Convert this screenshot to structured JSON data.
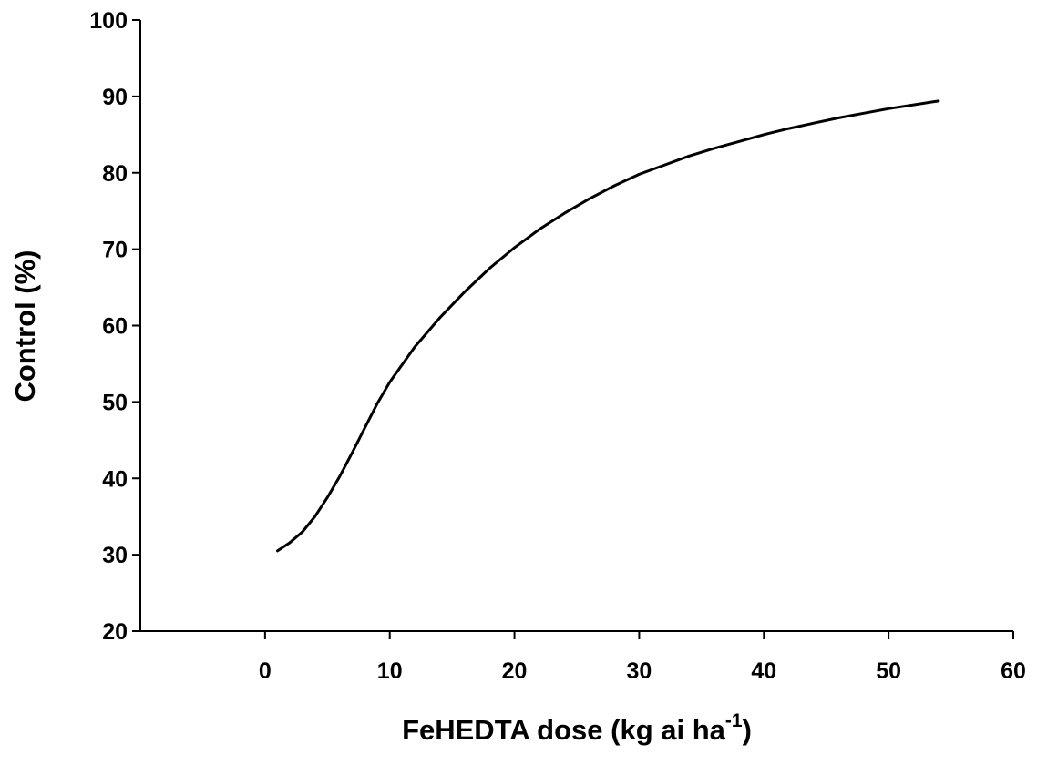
{
  "chart_data": {
    "type": "line",
    "title": "",
    "xlabel_main": "FeHEDTA dose (kg ai ha",
    "xlabel_sup": "-1",
    "xlabel_close": ")",
    "ylabel": "Control (%)",
    "xlim": [
      -10,
      60
    ],
    "ylim": [
      20,
      100
    ],
    "x_ticks": [
      0,
      10,
      20,
      30,
      40,
      50,
      60
    ],
    "y_ticks": [
      20,
      30,
      40,
      50,
      60,
      70,
      80,
      90,
      100
    ],
    "grid": false,
    "legend": "none",
    "series": [
      {
        "color": "#000000",
        "x": [
          1,
          2,
          3,
          4,
          5,
          6,
          7,
          8,
          9,
          10,
          12,
          14,
          16,
          18,
          20,
          22,
          24,
          26,
          28,
          30,
          32,
          34,
          36,
          38,
          40,
          42,
          44,
          46,
          48,
          50,
          52,
          54
        ],
        "y": [
          30.5,
          31.6,
          33.0,
          35.0,
          37.5,
          40.3,
          43.4,
          46.6,
          49.8,
          52.6,
          57.2,
          61.0,
          64.4,
          67.5,
          70.2,
          72.6,
          74.7,
          76.6,
          78.3,
          79.8,
          81.0,
          82.2,
          83.2,
          84.1,
          85.0,
          85.8,
          86.5,
          87.2,
          87.8,
          88.4,
          88.9,
          89.4
        ]
      }
    ]
  }
}
